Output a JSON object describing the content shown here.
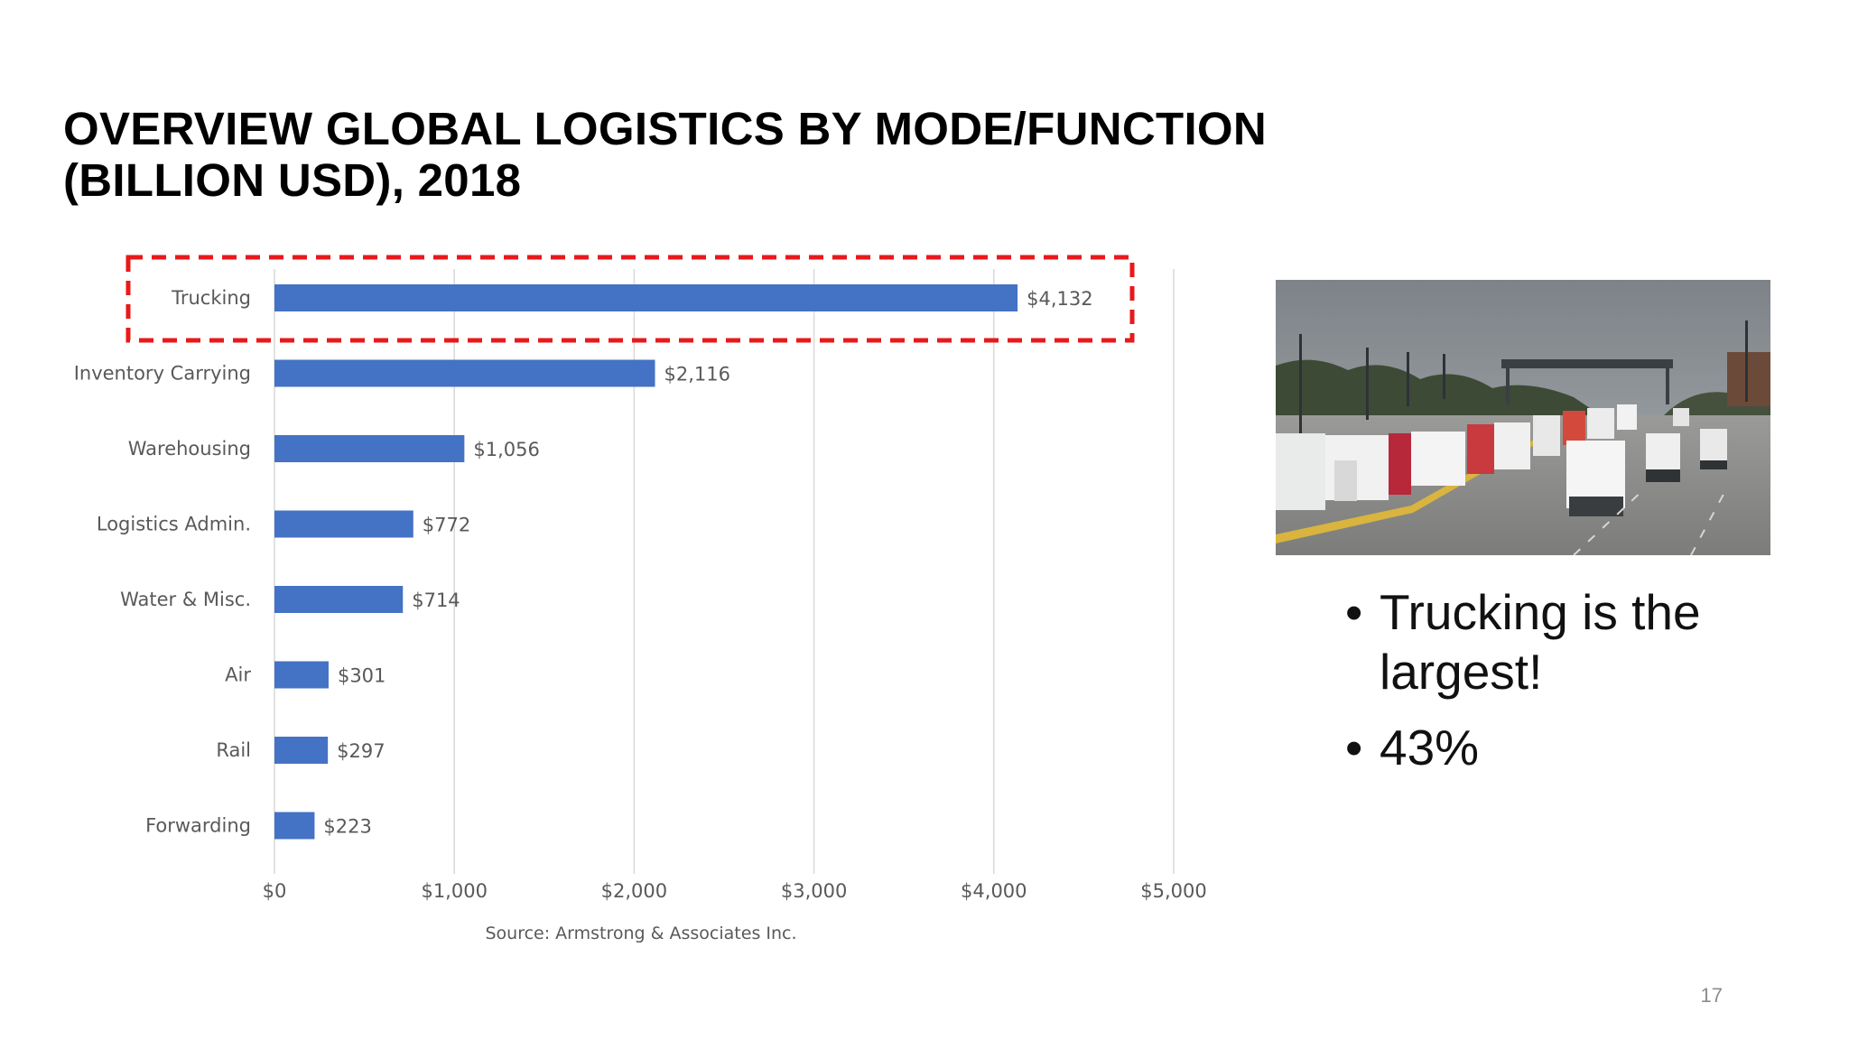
{
  "slide": {
    "title_lines": [
      "OVERVIEW GLOBAL LOGISTICS BY MODE/FUNCTION",
      "(BILLION USD), 2018"
    ],
    "page_number": "17",
    "bullets": [
      "Trucking is the largest!",
      "43%"
    ],
    "bullet_symbol": "•",
    "photo_icon": "trucks-at-border-crossing-photo"
  },
  "chart_data": {
    "type": "bar",
    "orientation": "horizontal",
    "title": "",
    "xlabel": "",
    "ylabel": "",
    "categories": [
      "Trucking",
      "Inventory Carrying",
      "Warehousing",
      "Logistics Admin.",
      "Water & Misc.",
      "Air",
      "Rail",
      "Forwarding"
    ],
    "values": [
      4132,
      2116,
      1056,
      772,
      714,
      301,
      297,
      223
    ],
    "data_labels": [
      "$4,132",
      "$2,116",
      "$1,056",
      "$772",
      "$714",
      "$301",
      "$297",
      "$223"
    ],
    "x_ticks": [
      0,
      1000,
      2000,
      3000,
      4000,
      5000
    ],
    "x_tick_labels": [
      "$0",
      "$1,000",
      "$2,000",
      "$3,000",
      "$4,000",
      "$5,000"
    ],
    "xlim": [
      0,
      5000
    ],
    "grid": true,
    "source": "Source: Armstrong & Associates Inc.",
    "highlight": {
      "category": "Trucking",
      "style": "dashed",
      "color": "#e8191b"
    },
    "bar_color": "#4472c4",
    "grid_color": "#d9d9d9",
    "text_color": "#595959"
  }
}
